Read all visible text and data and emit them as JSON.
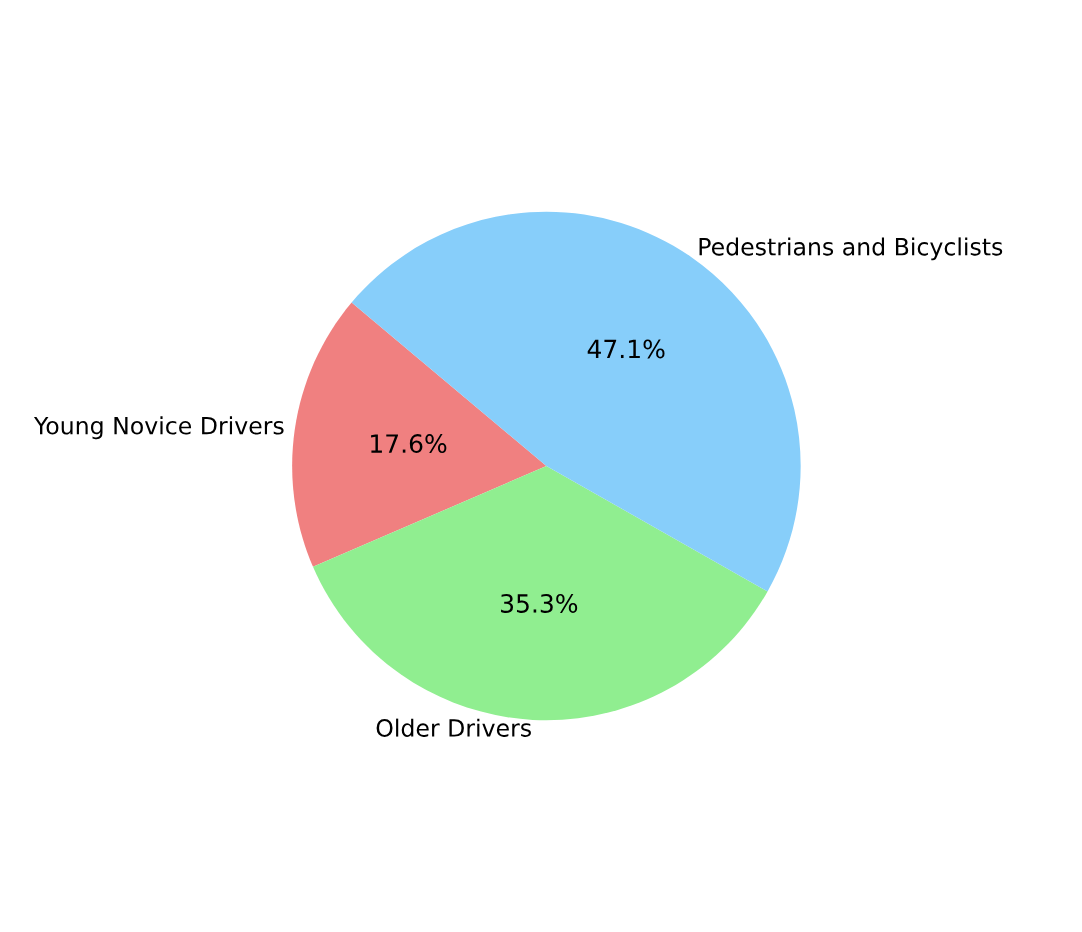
{
  "chart_data": {
    "type": "pie",
    "categories": [
      "Young Novice Drivers",
      "Older Drivers",
      "Pedestrians and Bicyclists"
    ],
    "values": [
      17.6,
      35.3,
      47.1
    ],
    "colors": [
      "#f08080",
      "#90ee90",
      "#87cefa"
    ],
    "value_labels": [
      "17.6%",
      "35.3%",
      "47.1%"
    ]
  }
}
